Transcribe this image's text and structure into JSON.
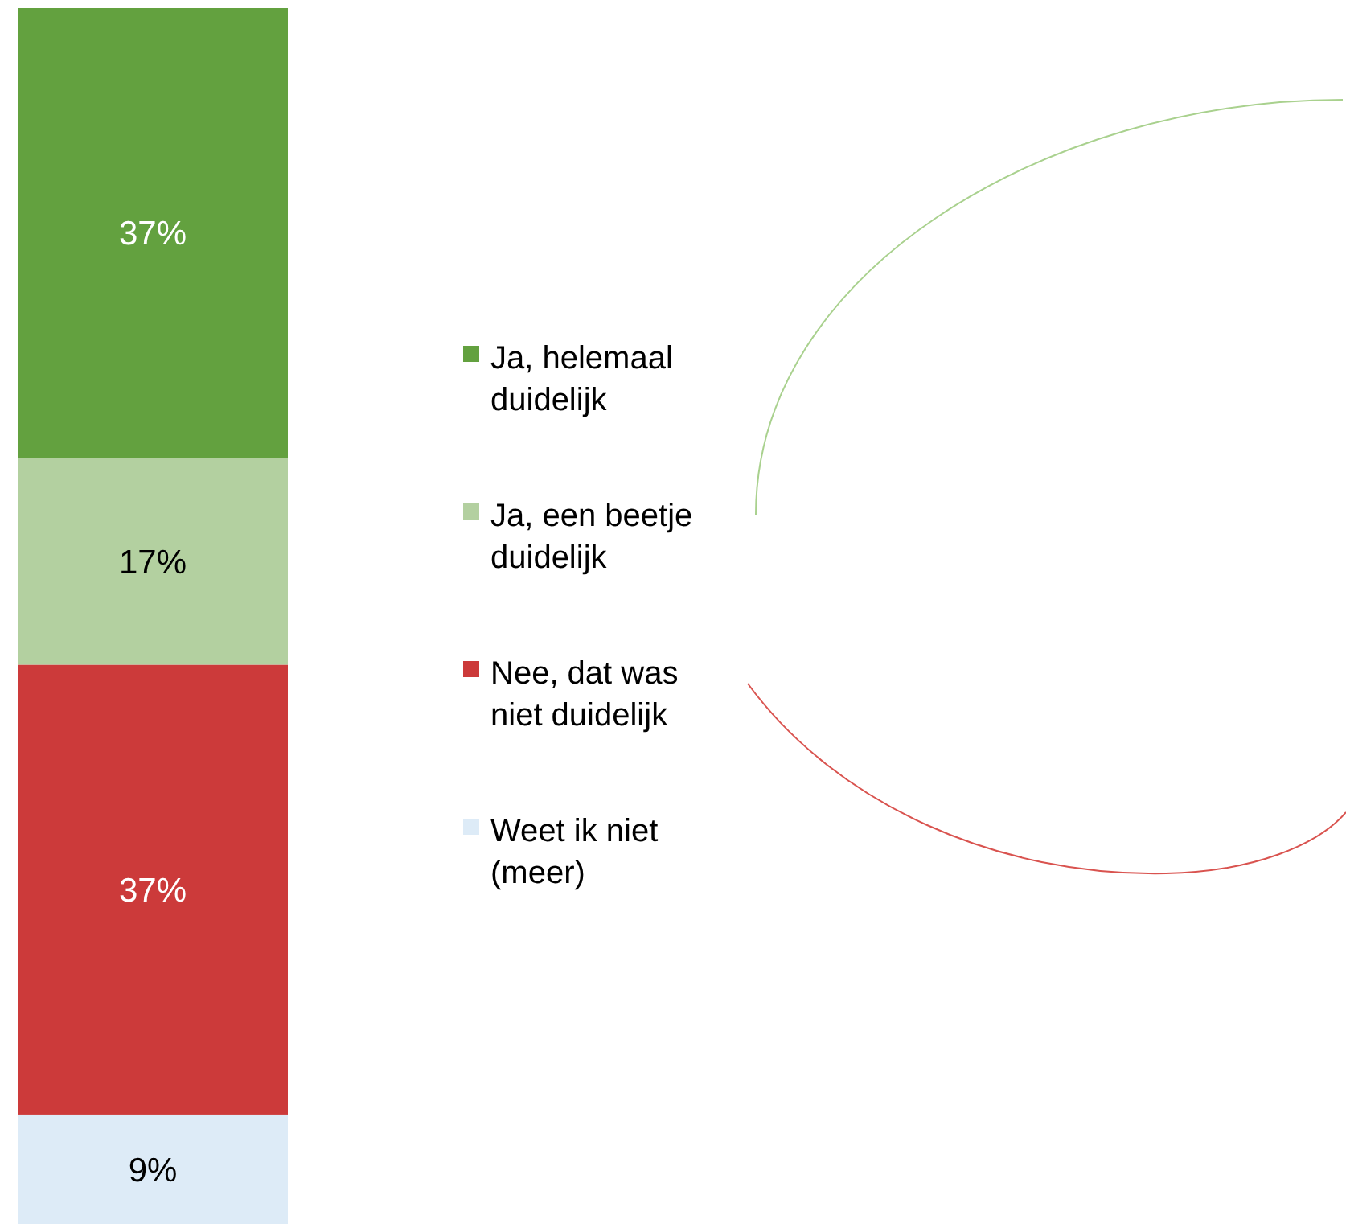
{
  "chart_data": {
    "type": "bar",
    "stacked": true,
    "categories": [
      null
    ],
    "legend": "right",
    "series": [
      {
        "name": "Weet ik niet (meer)",
        "color": "#ddebf7",
        "values": [
          9
        ],
        "value_labels": [
          "9%"
        ]
      },
      {
        "name": "Nee, dat was niet duidelijk",
        "color": "#cc3a3a",
        "values": [
          37
        ],
        "value_labels": [
          "37%"
        ]
      },
      {
        "name": "Ja, een beetje duidelijk",
        "color": "#b3d0a0",
        "values": [
          17
        ],
        "value_labels": [
          "17%"
        ]
      },
      {
        "name": "Ja, helemaal duidelijk",
        "color": "#63a13f",
        "values": [
          37
        ],
        "value_labels": [
          "37%"
        ]
      }
    ]
  }
}
